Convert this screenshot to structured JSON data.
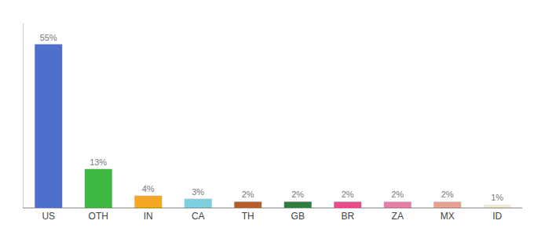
{
  "chart_data": {
    "type": "bar",
    "categories": [
      "US",
      "OTH",
      "IN",
      "CA",
      "TH",
      "GB",
      "BR",
      "ZA",
      "MX",
      "ID"
    ],
    "values": [
      55,
      13,
      4,
      3,
      2,
      2,
      2,
      2,
      2,
      1
    ],
    "value_labels": [
      "55%",
      "13%",
      "4%",
      "3%",
      "2%",
      "2%",
      "2%",
      "2%",
      "2%",
      "1%"
    ],
    "colors": [
      "#4f6fcc",
      "#3cb843",
      "#f5a623",
      "#7ecfe0",
      "#b85c2a",
      "#2e7d3c",
      "#e84c8b",
      "#e87daa",
      "#e8a090",
      "#f0ead6"
    ],
    "ylim": [
      0,
      62
    ],
    "grid": false,
    "data_labels": true,
    "tick_labels": "x"
  }
}
